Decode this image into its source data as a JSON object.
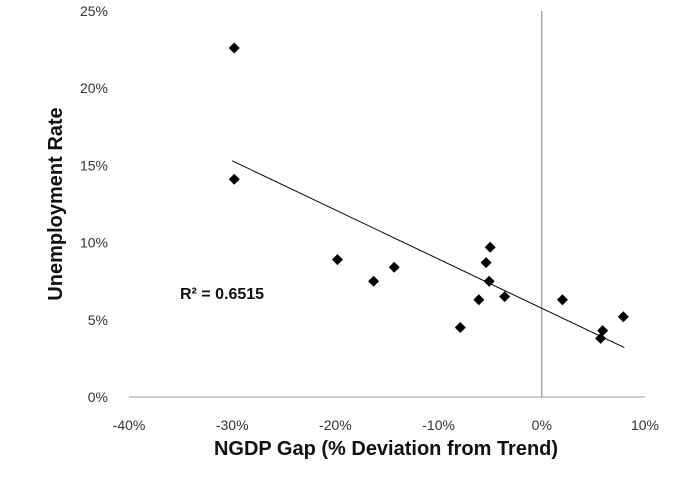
{
  "chart_data": {
    "type": "scatter",
    "title": "",
    "xlabel": "NGDP  Gap (% Deviation from Trend)",
    "ylabel": "Unemployment Rate",
    "xlim": [
      -40,
      10
    ],
    "ylim": [
      0,
      25
    ],
    "x_ticks": [
      -40,
      -30,
      -20,
      -10,
      0,
      10
    ],
    "x_tick_labels": [
      "-40%",
      "-30%",
      "-20%",
      "-10%",
      "0%",
      "10%"
    ],
    "y_ticks": [
      0,
      5,
      10,
      15,
      20,
      25
    ],
    "y_tick_labels": [
      "0%",
      "5%",
      "10%",
      "15%",
      "20%",
      "25%"
    ],
    "grid": false,
    "vertical_reference_line_x": 0,
    "points": [
      {
        "x": -29.8,
        "y": 22.6
      },
      {
        "x": -29.8,
        "y": 14.1
      },
      {
        "x": -19.8,
        "y": 8.9
      },
      {
        "x": -16.3,
        "y": 7.5
      },
      {
        "x": -14.3,
        "y": 8.4
      },
      {
        "x": -7.9,
        "y": 4.5
      },
      {
        "x": -6.1,
        "y": 6.3
      },
      {
        "x": -5.4,
        "y": 8.7
      },
      {
        "x": -5.1,
        "y": 7.5
      },
      {
        "x": -5.0,
        "y": 9.7
      },
      {
        "x": -3.6,
        "y": 6.5
      },
      {
        "x": 2.0,
        "y": 6.3
      },
      {
        "x": 5.7,
        "y": 3.8
      },
      {
        "x": 5.9,
        "y": 4.3
      },
      {
        "x": 7.9,
        "y": 5.2
      }
    ],
    "trendline": {
      "x1": -30,
      "y1": 15.3,
      "x2": 8,
      "y2": 3.2
    },
    "annotation": "R² = 0.6515",
    "marker_color": "#000000",
    "line_color": "#000000"
  }
}
